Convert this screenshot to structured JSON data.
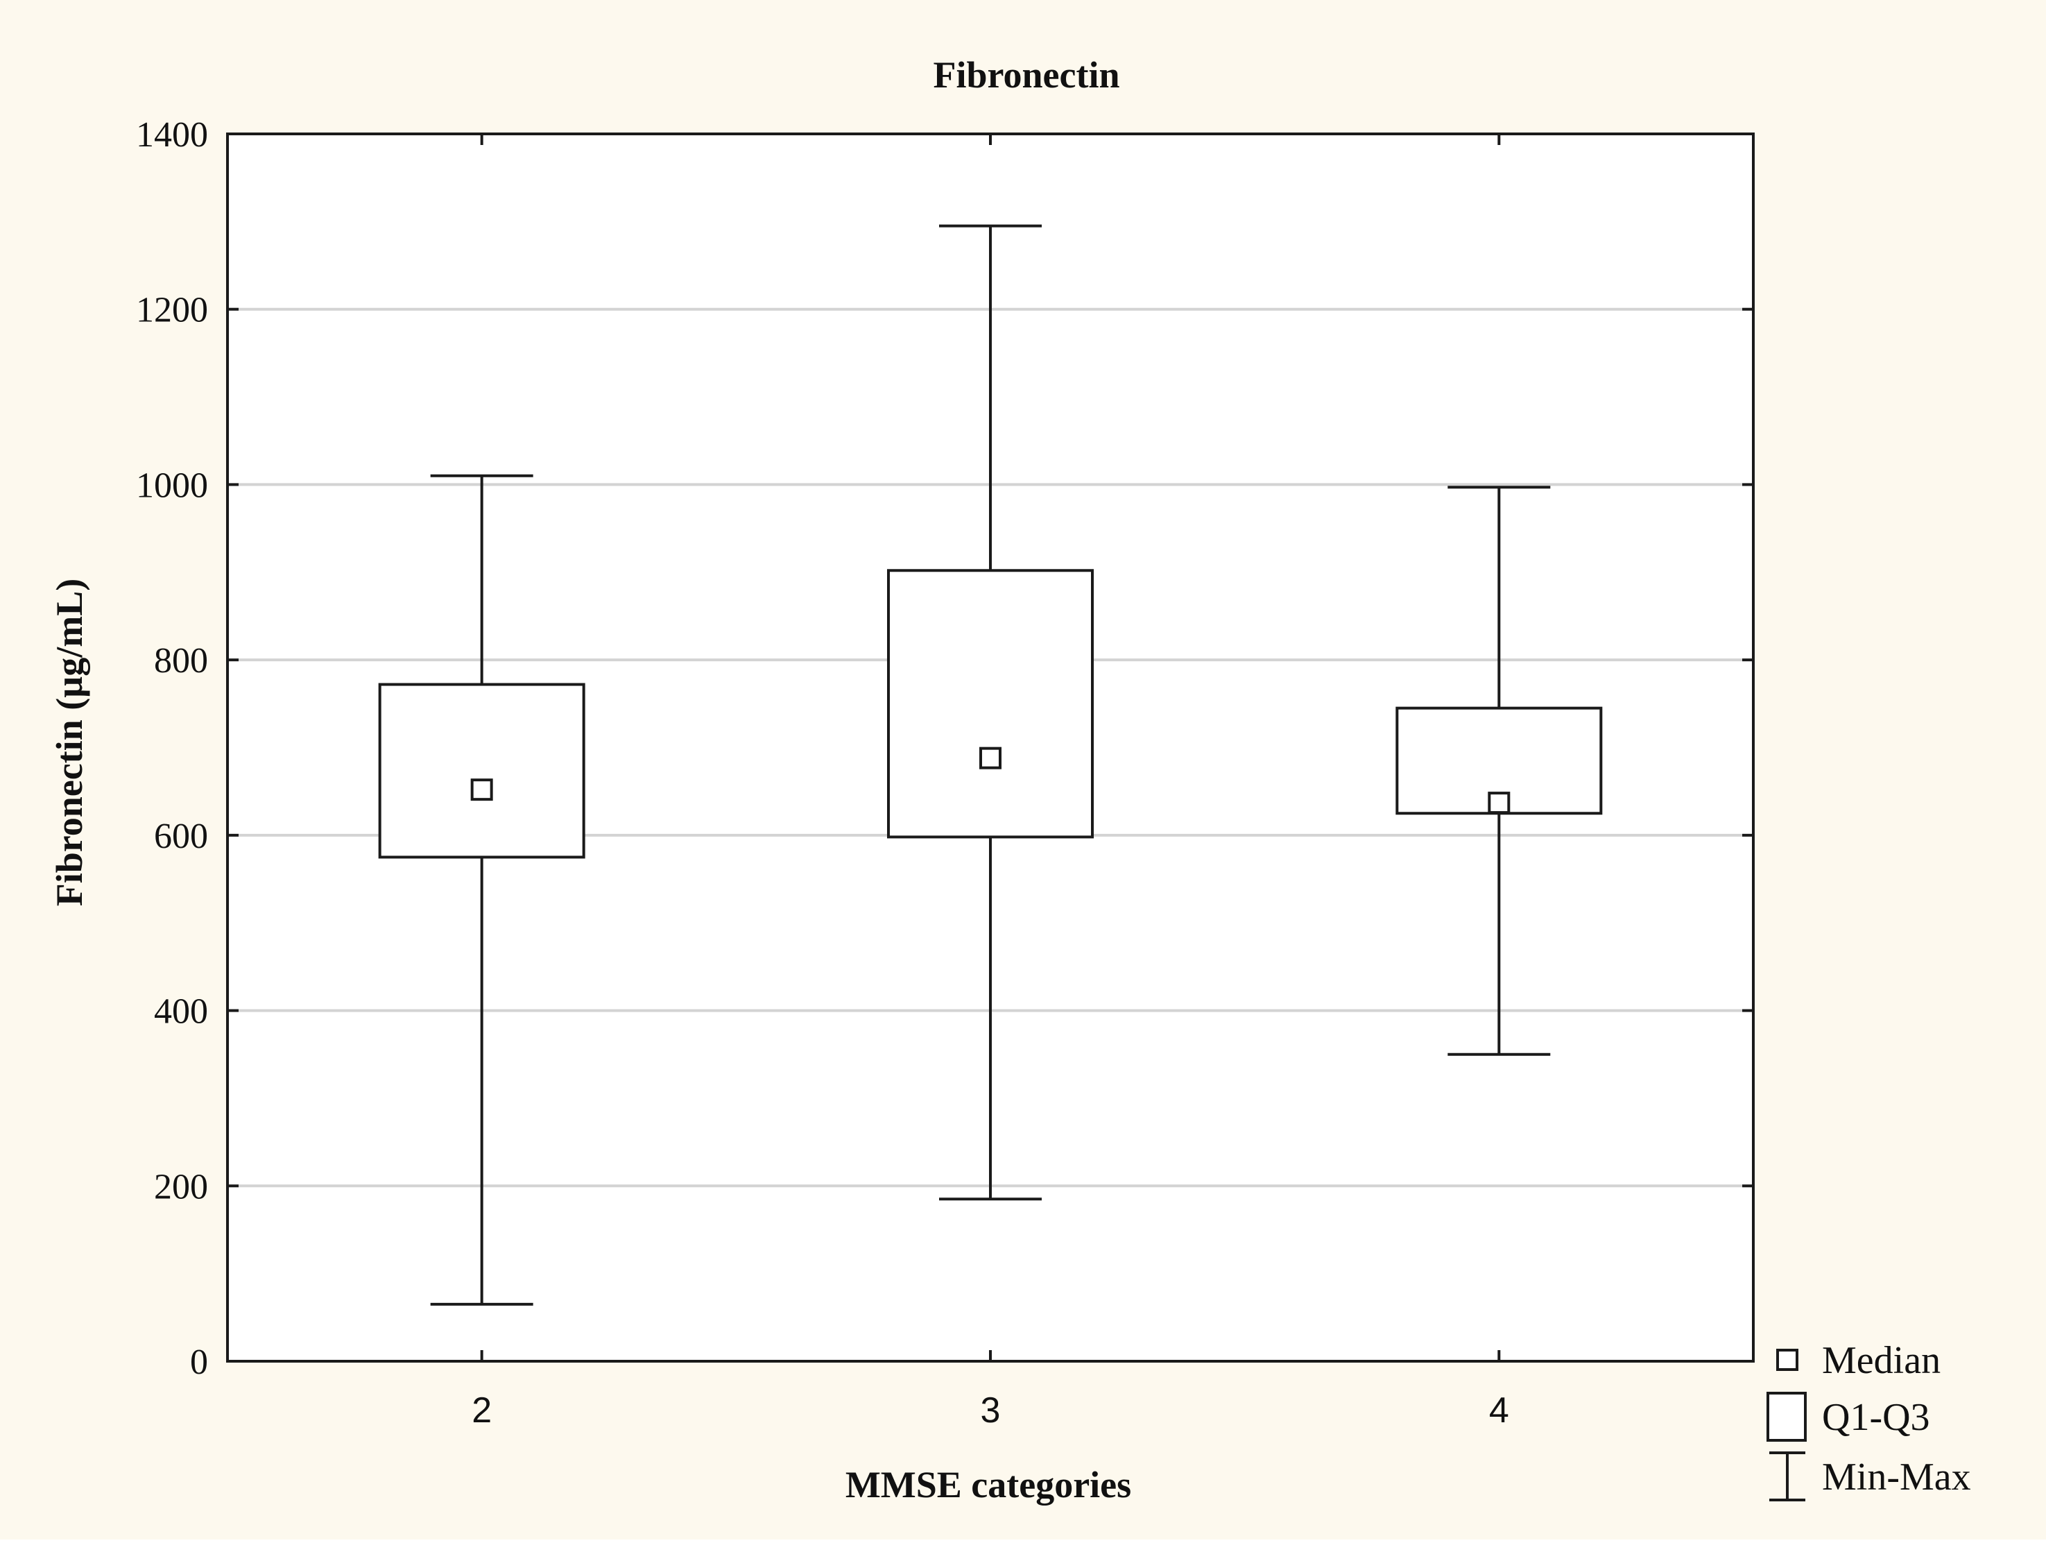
{
  "colors": {
    "background": "#fdf9ee",
    "plot_background": "#ffffff",
    "gridline": "#d3d3d3",
    "ink": "#1a1a1a"
  },
  "chart_data": {
    "type": "box",
    "title": "Fibronectin",
    "xlabel": "MMSE categories",
    "ylabel": "Fibronectin (µg/mL)",
    "categories": [
      "2",
      "3",
      "4"
    ],
    "ylim": [
      0,
      1400
    ],
    "yticks": [
      0,
      200,
      400,
      600,
      800,
      1000,
      1200,
      1400
    ],
    "grid": true,
    "legend_position": "bottom-right, outside plot",
    "boxes": [
      {
        "category": "2",
        "min": 65,
        "q1": 575,
        "median": 652,
        "q3": 772,
        "max": 1010
      },
      {
        "category": "3",
        "min": 185,
        "q1": 598,
        "median": 688,
        "q3": 902,
        "max": 1295
      },
      {
        "category": "4",
        "min": 350,
        "q1": 625,
        "median": 637,
        "q3": 745,
        "max": 997
      }
    ],
    "legend": [
      {
        "symbol": "small-square",
        "label": "Median"
      },
      {
        "symbol": "box",
        "label": "Q1-Q3"
      },
      {
        "symbol": "whisker",
        "label": "Min-Max"
      }
    ]
  }
}
